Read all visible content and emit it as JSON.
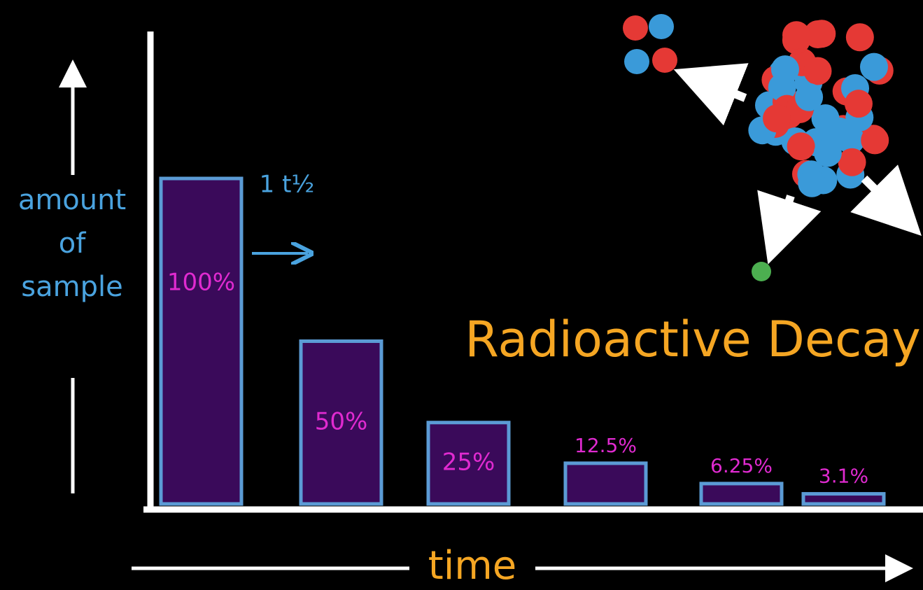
{
  "chart_data": {
    "type": "bar",
    "title": "Radioactive Decay",
    "categories": [
      null,
      null,
      null,
      null,
      null,
      null
    ],
    "values": [
      100,
      50,
      25,
      12.5,
      6.25,
      3.1
    ],
    "value_labels": [
      "100%",
      "50%",
      "25%",
      "12.5%",
      "6.25%",
      "3.1%"
    ],
    "ylim": [
      0,
      100
    ],
    "ylabel": "amount of sample",
    "xlabel": "time",
    "annotation": "1 t½",
    "color": "#3a0a5a",
    "edge_color": "#5b9bd5",
    "label_color": "#e02ad0"
  }
}
